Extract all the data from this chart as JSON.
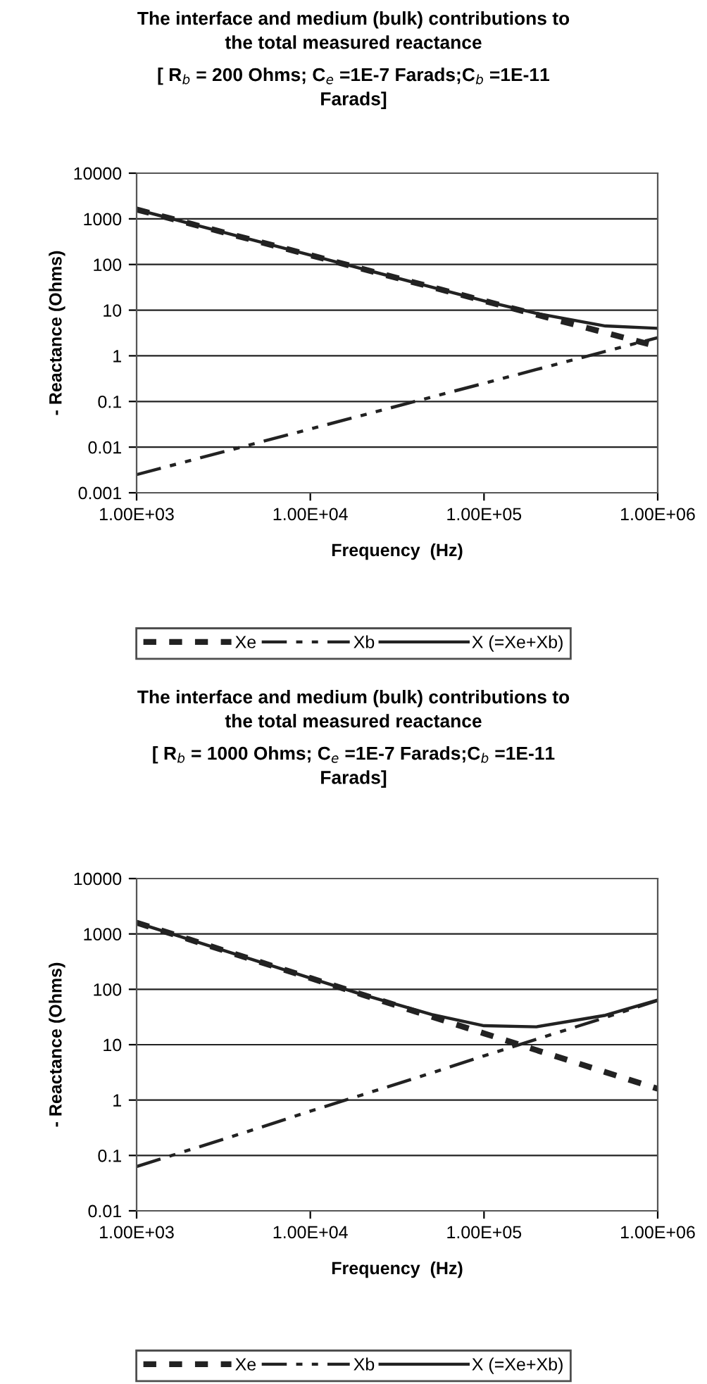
{
  "chart_data": [
    {
      "type": "line",
      "title": "The interface and medium (bulk) contributions to\nthe total measured reactance",
      "subtitle": "[ R$_{b}$ = 200 Ohms; C$_{e}$ =1E-7 Farads;C$_{b}$ =1E-11\nFarads]",
      "xlabel": "Frequency  (Hz)",
      "ylabel": "- Reactance (Ohms)",
      "log": "xy",
      "grid": "y",
      "legend": "bottom",
      "x": [
        1000,
        2000,
        5000,
        10000,
        20000,
        50000,
        100000,
        200000,
        500000,
        1000000
      ],
      "xlim": [
        1000,
        1000000
      ],
      "xticks": [
        {
          "value": 1000,
          "label": "1.00E+03"
        },
        {
          "value": 10000,
          "label": "1.00E+04"
        },
        {
          "value": 100000,
          "label": "1.00E+05"
        },
        {
          "value": 1000000,
          "label": "1.00E+06"
        }
      ],
      "ylim": [
        0.001,
        10000
      ],
      "yticks": [
        0.001,
        0.01,
        0.1,
        1,
        10,
        100,
        1000,
        10000
      ],
      "series": [
        {
          "name": "Xe",
          "color": "#222222",
          "line_style": "dashed",
          "values": [
            1600,
            800,
            320,
            160,
            80,
            32,
            16,
            8,
            3.2,
            1.6
          ]
        },
        {
          "name": "Xb",
          "color": "#222222",
          "line_style": "dashed",
          "values": [
            0.0025,
            0.005,
            0.0125,
            0.025,
            0.05,
            0.125,
            0.25,
            0.5,
            1.25,
            2.5
          ]
        },
        {
          "name": "X (=Xe+Xb)",
          "color": "#222222",
          "line_style": "solid",
          "values": [
            1600,
            800,
            320,
            160,
            80,
            32,
            16,
            8.5,
            4.5,
            4
          ]
        }
      ]
    },
    {
      "type": "line",
      "title": "The interface and medium (bulk) contributions to\nthe total measured reactance",
      "subtitle": "[ R$_{b}$ = 1000 Ohms; C$_{e}$ =1E-7 Farads;C$_{b}$ =1E-11\nFarads]",
      "xlabel": "Frequency  (Hz)",
      "ylabel": "- Reactance (Ohms)",
      "log": "xy",
      "grid": "y",
      "legend": "bottom",
      "x": [
        1000,
        2000,
        5000,
        10000,
        20000,
        50000,
        100000,
        200000,
        500000,
        1000000
      ],
      "xlim": [
        1000,
        1000000
      ],
      "xticks": [
        {
          "value": 1000,
          "label": "1.00E+03"
        },
        {
          "value": 10000,
          "label": "1.00E+04"
        },
        {
          "value": 100000,
          "label": "1.00E+05"
        },
        {
          "value": 1000000,
          "label": "1.00E+06"
        }
      ],
      "ylim": [
        0.01,
        10000
      ],
      "yticks": [
        0.01,
        0.1,
        1,
        10,
        100,
        1000,
        10000
      ],
      "series": [
        {
          "name": "Xe",
          "color": "#222222",
          "line_style": "dashed",
          "values": [
            1600,
            800,
            320,
            160,
            80,
            32,
            16,
            8,
            3.2,
            1.6
          ]
        },
        {
          "name": "Xb",
          "color": "#222222",
          "line_style": "dashed",
          "values": [
            0.063,
            0.125,
            0.31,
            0.63,
            1.25,
            3.1,
            6.3,
            12.5,
            31,
            63
          ]
        },
        {
          "name": "X (=Xe+Xb)",
          "color": "#222222",
          "line_style": "solid",
          "values": [
            1600,
            800,
            320,
            160,
            80,
            35,
            22,
            21,
            34,
            64
          ]
        }
      ]
    }
  ]
}
